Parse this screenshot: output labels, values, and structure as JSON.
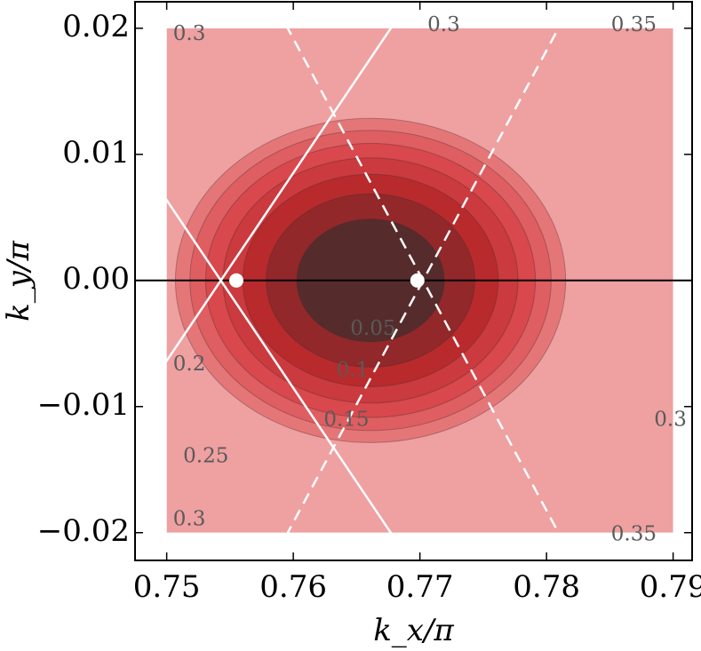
{
  "chart_data": {
    "type": "contour",
    "xlabel": "k_x/π",
    "ylabel": "k_y/π",
    "x_ticks": [
      "0.75",
      "0.76",
      "0.77",
      "0.78",
      "0.79"
    ],
    "y_ticks": [
      "−0.02",
      "−0.01",
      "0.00",
      "0.01",
      "0.02"
    ],
    "xlim": [
      0.7475,
      0.7915
    ],
    "ylim": [
      -0.0222,
      0.0221
    ],
    "data_region": {
      "x": [
        0.75,
        0.79
      ],
      "y": [
        -0.02,
        0.02
      ]
    },
    "contour_levels": [
      0.05,
      0.1,
      0.15,
      0.2,
      0.25,
      0.3,
      0.35
    ],
    "contour_center": {
      "x": 0.7661,
      "y": 0.0
    },
    "contour_fill_colors": [
      "#562b2c",
      "#92282a",
      "#b92a2d",
      "#ca3a3e",
      "#d8484c",
      "#de5e61",
      "#e57678",
      "#efa0a1"
    ],
    "contour_labels": [
      {
        "text": "0.05",
        "x": 0.7645,
        "y": -0.0039
      },
      {
        "text": "0.1",
        "x": 0.7634,
        "y": -0.0072
      },
      {
        "text": "0.15",
        "x": 0.7624,
        "y": -0.0111
      },
      {
        "text": "0.2",
        "x": 0.7505,
        "y": -0.0067
      },
      {
        "text": "0.25",
        "x": 0.7513,
        "y": -0.014
      },
      {
        "text": "0.3",
        "x": 0.7505,
        "y": 0.0195
      },
      {
        "text": "0.3",
        "x": 0.7505,
        "y": -0.019
      },
      {
        "text": "0.3",
        "x": 0.7706,
        "y": 0.0202
      },
      {
        "text": "0.3",
        "x": 0.7885,
        "y": -0.0111
      },
      {
        "text": "0.35",
        "x": 0.7851,
        "y": 0.0202
      },
      {
        "text": "0.35",
        "x": 0.7851,
        "y": -0.0202
      }
    ],
    "solid_lines": [
      {
        "x": [
          0.7481,
          0.7679
        ],
        "y": [
          0.0092,
          -0.0203
        ]
      },
      {
        "x": [
          0.7481,
          0.7679
        ],
        "y": [
          -0.0092,
          0.0203
        ]
      }
    ],
    "dashed_lines": [
      {
        "x": [
          0.7594,
          0.7811
        ],
        "y": [
          0.0203,
          -0.0203
        ]
      },
      {
        "x": [
          0.7594,
          0.7811
        ],
        "y": [
          -0.0203,
          0.0203
        ]
      }
    ],
    "horizontal_line_y": 0.0,
    "points": [
      {
        "x": 0.7555,
        "y": 0.0
      },
      {
        "x": 0.7698,
        "y": 0.0
      }
    ]
  }
}
